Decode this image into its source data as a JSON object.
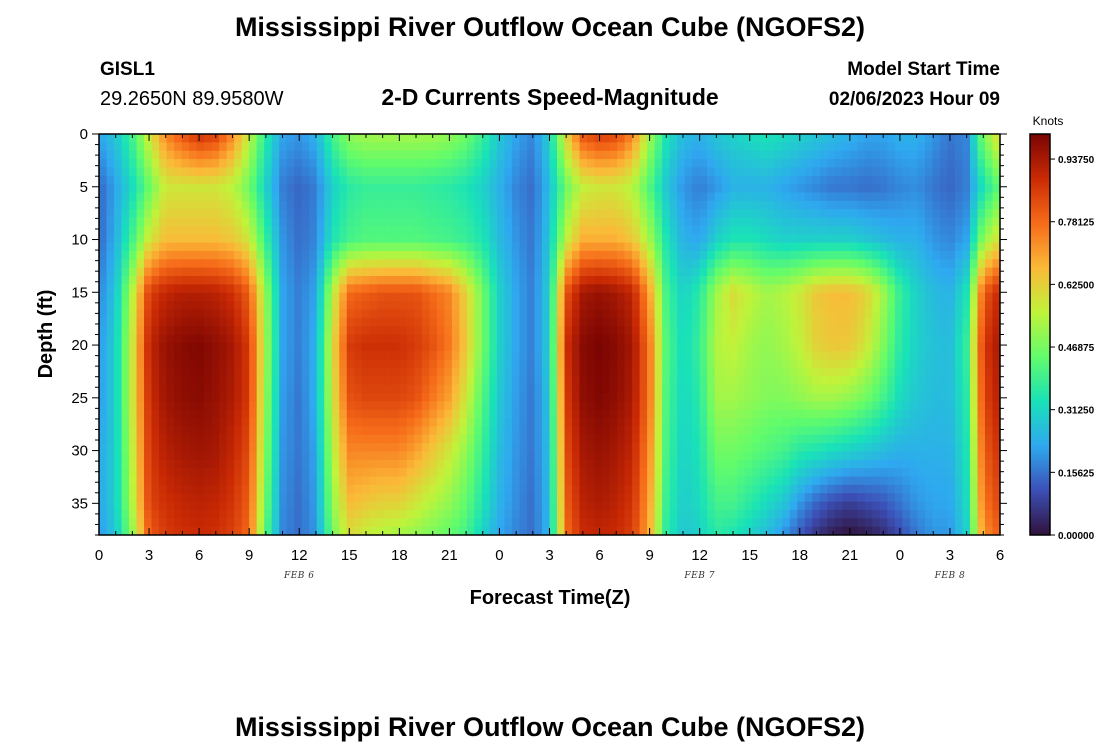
{
  "title": "Mississippi River Outflow Ocean Cube (NGOFS2)",
  "station": {
    "id": "GISL1",
    "coords": "29.2650N  89.9580W"
  },
  "subtitle": "2-D Currents Speed-Magnitude",
  "model_start": {
    "label": "Model Start Time",
    "value": "02/06/2023 Hour 09"
  },
  "footer_title": "Mississippi River Outflow Ocean Cube (NGOFS2)",
  "colors": {
    "scale": [
      "#30123b",
      "#3c4fb6",
      "#2fa8f0",
      "#19e2b8",
      "#62fc6b",
      "#c0f33a",
      "#fbb938",
      "#f66b19",
      "#ca2a04",
      "#7a0403"
    ]
  },
  "chart_data": {
    "type": "heatmap",
    "xlabel": "Forecast Time(Z)",
    "ylabel": "Depth (ft)",
    "xlim": [
      0,
      54
    ],
    "ylim": [
      0,
      38
    ],
    "x_tick_labels": [
      "0",
      "3",
      "6",
      "9",
      "12",
      "15",
      "18",
      "21",
      "0",
      "3",
      "6",
      "9",
      "12",
      "15",
      "18",
      "21",
      "0",
      "3",
      "6"
    ],
    "y_ticks": [
      0,
      5,
      10,
      15,
      20,
      25,
      30,
      35
    ],
    "y_tick_labels": [
      "0",
      "5",
      "10",
      "15",
      "20",
      "25",
      "30",
      "35"
    ],
    "date_labels": [
      {
        "text": "FEB 6",
        "hour": 12
      },
      {
        "text": "FEB 7",
        "hour": 36
      },
      {
        "text": "FEB 8",
        "hour": 51
      }
    ],
    "colorbar": {
      "title": "Knots",
      "min": 0,
      "max": 1.0,
      "ticks": [
        0.0,
        0.15625,
        0.3125,
        0.46875,
        0.625,
        0.78125,
        0.9375
      ],
      "tick_labels": [
        "0.00000",
        "0.15625",
        "0.31250",
        "0.46875",
        "0.62500",
        "0.78125",
        "0.93750"
      ]
    },
    "columns": [
      {
        "hour": 0,
        "values": [
          0.22,
          0.14,
          0.14,
          0.18,
          0.2,
          0.2,
          0.22,
          0.22,
          0.2
        ]
      },
      {
        "hour": 1,
        "values": [
          0.28,
          0.22,
          0.24,
          0.28,
          0.3,
          0.3,
          0.3,
          0.3,
          0.28
        ]
      },
      {
        "hour": 2,
        "values": [
          0.4,
          0.32,
          0.4,
          0.55,
          0.58,
          0.58,
          0.56,
          0.54,
          0.5
        ]
      },
      {
        "hour": 3,
        "values": [
          0.58,
          0.45,
          0.58,
          0.85,
          0.9,
          0.88,
          0.86,
          0.84,
          0.8
        ]
      },
      {
        "hour": 4,
        "values": [
          0.74,
          0.58,
          0.66,
          0.9,
          0.96,
          0.95,
          0.92,
          0.88,
          0.86
        ]
      },
      {
        "hour": 5,
        "values": [
          0.82,
          0.58,
          0.66,
          0.92,
          0.98,
          0.97,
          0.94,
          0.9,
          0.88
        ]
      },
      {
        "hour": 6,
        "values": [
          0.88,
          0.58,
          0.66,
          0.92,
          0.99,
          0.98,
          0.95,
          0.91,
          0.89
        ]
      },
      {
        "hour": 7,
        "values": [
          0.85,
          0.58,
          0.66,
          0.91,
          0.97,
          0.96,
          0.94,
          0.9,
          0.88
        ]
      },
      {
        "hour": 8,
        "values": [
          0.74,
          0.55,
          0.64,
          0.88,
          0.94,
          0.93,
          0.9,
          0.87,
          0.85
        ]
      },
      {
        "hour": 9,
        "values": [
          0.56,
          0.46,
          0.58,
          0.8,
          0.86,
          0.86,
          0.83,
          0.8,
          0.78
        ]
      },
      {
        "hour": 10,
        "values": [
          0.36,
          0.3,
          0.38,
          0.5,
          0.52,
          0.5,
          0.48,
          0.45,
          0.42
        ]
      },
      {
        "hour": 11,
        "values": [
          0.22,
          0.17,
          0.2,
          0.22,
          0.22,
          0.21,
          0.2,
          0.19,
          0.18
        ]
      },
      {
        "hour": 12,
        "values": [
          0.2,
          0.14,
          0.15,
          0.17,
          0.17,
          0.16,
          0.16,
          0.15,
          0.15
        ]
      },
      {
        "hour": 13,
        "values": [
          0.24,
          0.17,
          0.18,
          0.22,
          0.24,
          0.24,
          0.22,
          0.21,
          0.2
        ]
      },
      {
        "hour": 14,
        "values": [
          0.4,
          0.3,
          0.34,
          0.55,
          0.6,
          0.58,
          0.54,
          0.5,
          0.46
        ]
      },
      {
        "hour": 15,
        "values": [
          0.5,
          0.36,
          0.4,
          0.78,
          0.86,
          0.82,
          0.74,
          0.66,
          0.6
        ]
      },
      {
        "hour": 16,
        "values": [
          0.52,
          0.38,
          0.42,
          0.8,
          0.88,
          0.84,
          0.74,
          0.64,
          0.56
        ]
      },
      {
        "hour": 17,
        "values": [
          0.52,
          0.38,
          0.42,
          0.82,
          0.88,
          0.84,
          0.74,
          0.62,
          0.54
        ]
      },
      {
        "hour": 18,
        "values": [
          0.52,
          0.38,
          0.42,
          0.82,
          0.88,
          0.84,
          0.74,
          0.62,
          0.52
        ]
      },
      {
        "hour": 19,
        "values": [
          0.52,
          0.38,
          0.42,
          0.82,
          0.86,
          0.82,
          0.7,
          0.58,
          0.5
        ]
      },
      {
        "hour": 20,
        "values": [
          0.52,
          0.37,
          0.41,
          0.78,
          0.82,
          0.76,
          0.64,
          0.54,
          0.47
        ]
      },
      {
        "hour": 21,
        "values": [
          0.5,
          0.36,
          0.4,
          0.74,
          0.76,
          0.7,
          0.58,
          0.5,
          0.44
        ]
      },
      {
        "hour": 22,
        "values": [
          0.46,
          0.34,
          0.38,
          0.62,
          0.64,
          0.58,
          0.5,
          0.44,
          0.4
        ]
      },
      {
        "hour": 23,
        "values": [
          0.38,
          0.3,
          0.34,
          0.46,
          0.46,
          0.42,
          0.38,
          0.34,
          0.3
        ]
      },
      {
        "hour": 24,
        "values": [
          0.28,
          0.24,
          0.26,
          0.3,
          0.3,
          0.28,
          0.26,
          0.24,
          0.22
        ]
      },
      {
        "hour": 25,
        "values": [
          0.22,
          0.18,
          0.2,
          0.22,
          0.22,
          0.21,
          0.2,
          0.19,
          0.18
        ]
      },
      {
        "hour": 26,
        "values": [
          0.18,
          0.15,
          0.16,
          0.17,
          0.17,
          0.16,
          0.16,
          0.15,
          0.15
        ]
      },
      {
        "hour": 27,
        "values": [
          0.3,
          0.26,
          0.28,
          0.3,
          0.3,
          0.28,
          0.27,
          0.26,
          0.25
        ]
      },
      {
        "hour": 28,
        "values": [
          0.62,
          0.46,
          0.56,
          0.82,
          0.88,
          0.86,
          0.83,
          0.8,
          0.78
        ]
      },
      {
        "hour": 29,
        "values": [
          0.82,
          0.56,
          0.68,
          0.94,
          0.98,
          0.97,
          0.94,
          0.91,
          0.89
        ]
      },
      {
        "hour": 30,
        "values": [
          0.86,
          0.58,
          0.68,
          0.96,
          1.0,
          0.99,
          0.96,
          0.93,
          0.9
        ]
      },
      {
        "hour": 31,
        "values": [
          0.84,
          0.58,
          0.68,
          0.94,
          0.98,
          0.97,
          0.94,
          0.91,
          0.89
        ]
      },
      {
        "hour": 32,
        "values": [
          0.74,
          0.54,
          0.64,
          0.9,
          0.94,
          0.93,
          0.9,
          0.87,
          0.85
        ]
      },
      {
        "hour": 33,
        "values": [
          0.52,
          0.42,
          0.52,
          0.7,
          0.76,
          0.76,
          0.73,
          0.7,
          0.68
        ]
      },
      {
        "hour": 34,
        "values": [
          0.34,
          0.28,
          0.34,
          0.4,
          0.42,
          0.41,
          0.4,
          0.38,
          0.36
        ]
      },
      {
        "hour": 35,
        "values": [
          0.26,
          0.2,
          0.24,
          0.3,
          0.32,
          0.31,
          0.3,
          0.29,
          0.28
        ]
      },
      {
        "hour": 36,
        "values": [
          0.24,
          0.17,
          0.22,
          0.36,
          0.38,
          0.36,
          0.34,
          0.32,
          0.3
        ]
      },
      {
        "hour": 37,
        "values": [
          0.28,
          0.2,
          0.3,
          0.52,
          0.54,
          0.52,
          0.46,
          0.4,
          0.36
        ]
      },
      {
        "hour": 38,
        "values": [
          0.3,
          0.24,
          0.34,
          0.6,
          0.56,
          0.52,
          0.46,
          0.4,
          0.34
        ]
      },
      {
        "hour": 39,
        "values": [
          0.32,
          0.24,
          0.34,
          0.56,
          0.52,
          0.5,
          0.44,
          0.36,
          0.3
        ]
      },
      {
        "hour": 40,
        "values": [
          0.34,
          0.24,
          0.32,
          0.52,
          0.5,
          0.48,
          0.42,
          0.32,
          0.26
        ]
      },
      {
        "hour": 41,
        "values": [
          0.32,
          0.22,
          0.3,
          0.54,
          0.52,
          0.48,
          0.4,
          0.28,
          0.2
        ]
      },
      {
        "hour": 42,
        "values": [
          0.3,
          0.2,
          0.3,
          0.58,
          0.56,
          0.5,
          0.36,
          0.2,
          0.12
        ]
      },
      {
        "hour": 43,
        "values": [
          0.28,
          0.18,
          0.3,
          0.64,
          0.62,
          0.52,
          0.34,
          0.14,
          0.06
        ]
      },
      {
        "hour": 44,
        "values": [
          0.26,
          0.16,
          0.3,
          0.66,
          0.64,
          0.52,
          0.32,
          0.1,
          0.02
        ]
      },
      {
        "hour": 45,
        "values": [
          0.24,
          0.16,
          0.3,
          0.66,
          0.64,
          0.5,
          0.3,
          0.08,
          0.0
        ]
      },
      {
        "hour": 46,
        "values": [
          0.22,
          0.15,
          0.28,
          0.62,
          0.58,
          0.46,
          0.28,
          0.1,
          0.02
        ]
      },
      {
        "hour": 47,
        "values": [
          0.22,
          0.16,
          0.26,
          0.52,
          0.48,
          0.4,
          0.26,
          0.12,
          0.05
        ]
      },
      {
        "hour": 48,
        "values": [
          0.24,
          0.18,
          0.24,
          0.38,
          0.36,
          0.32,
          0.24,
          0.16,
          0.1
        ]
      },
      {
        "hour": 49,
        "values": [
          0.24,
          0.19,
          0.24,
          0.3,
          0.3,
          0.28,
          0.24,
          0.2,
          0.16
        ]
      },
      {
        "hour": 50,
        "values": [
          0.2,
          0.16,
          0.2,
          0.26,
          0.27,
          0.26,
          0.24,
          0.22,
          0.2
        ]
      },
      {
        "hour": 51,
        "values": [
          0.16,
          0.14,
          0.18,
          0.24,
          0.26,
          0.26,
          0.24,
          0.22,
          0.2
        ]
      },
      {
        "hour": 52,
        "values": [
          0.18,
          0.17,
          0.22,
          0.34,
          0.38,
          0.36,
          0.34,
          0.32,
          0.3
        ]
      },
      {
        "hour": 53,
        "values": [
          0.48,
          0.34,
          0.5,
          0.8,
          0.86,
          0.84,
          0.8,
          0.76,
          0.72
        ]
      },
      {
        "hour": 54,
        "values": [
          0.62,
          0.44,
          0.6,
          0.9,
          0.94,
          0.92,
          0.88,
          0.84,
          0.8
        ]
      }
    ],
    "depths": [
      0,
      5,
      10,
      15,
      20,
      25,
      30,
      35,
      38
    ]
  }
}
